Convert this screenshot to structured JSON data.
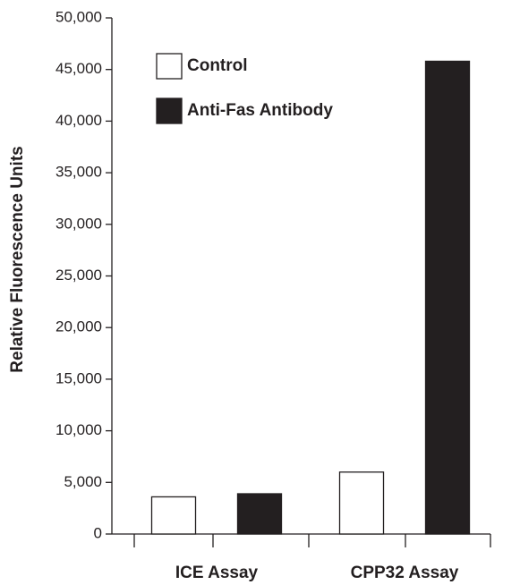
{
  "chart_data": {
    "type": "bar",
    "y_label": "Relative Fluorescence Units",
    "categories": [
      "ICE Assay",
      "CPP32 Assay"
    ],
    "series": [
      {
        "name": "Control",
        "color": "#ffffff",
        "values": [
          3600,
          6000
        ]
      },
      {
        "name": "Anti-Fas Antibody",
        "color": "#231f20",
        "values": [
          3900,
          45800
        ]
      }
    ],
    "ylim": [
      0,
      50000
    ],
    "yticks": [
      0,
      {
        "value": 5000,
        "label": "5,000"
      },
      {
        "value": 10000,
        "label": "10,000"
      },
      {
        "value": 15000,
        "label": "15,000"
      },
      {
        "value": 20000,
        "label": "20,000"
      },
      {
        "value": 25000,
        "label": "25,000"
      },
      {
        "value": 30000,
        "label": "30,000"
      },
      {
        "value": 35000,
        "label": "35,000"
      },
      {
        "value": 40000,
        "label": "40,000"
      },
      {
        "value": 45000,
        "label": "45,000"
      },
      {
        "value": 50000,
        "label": "50,000"
      }
    ],
    "legend": "upper left"
  }
}
